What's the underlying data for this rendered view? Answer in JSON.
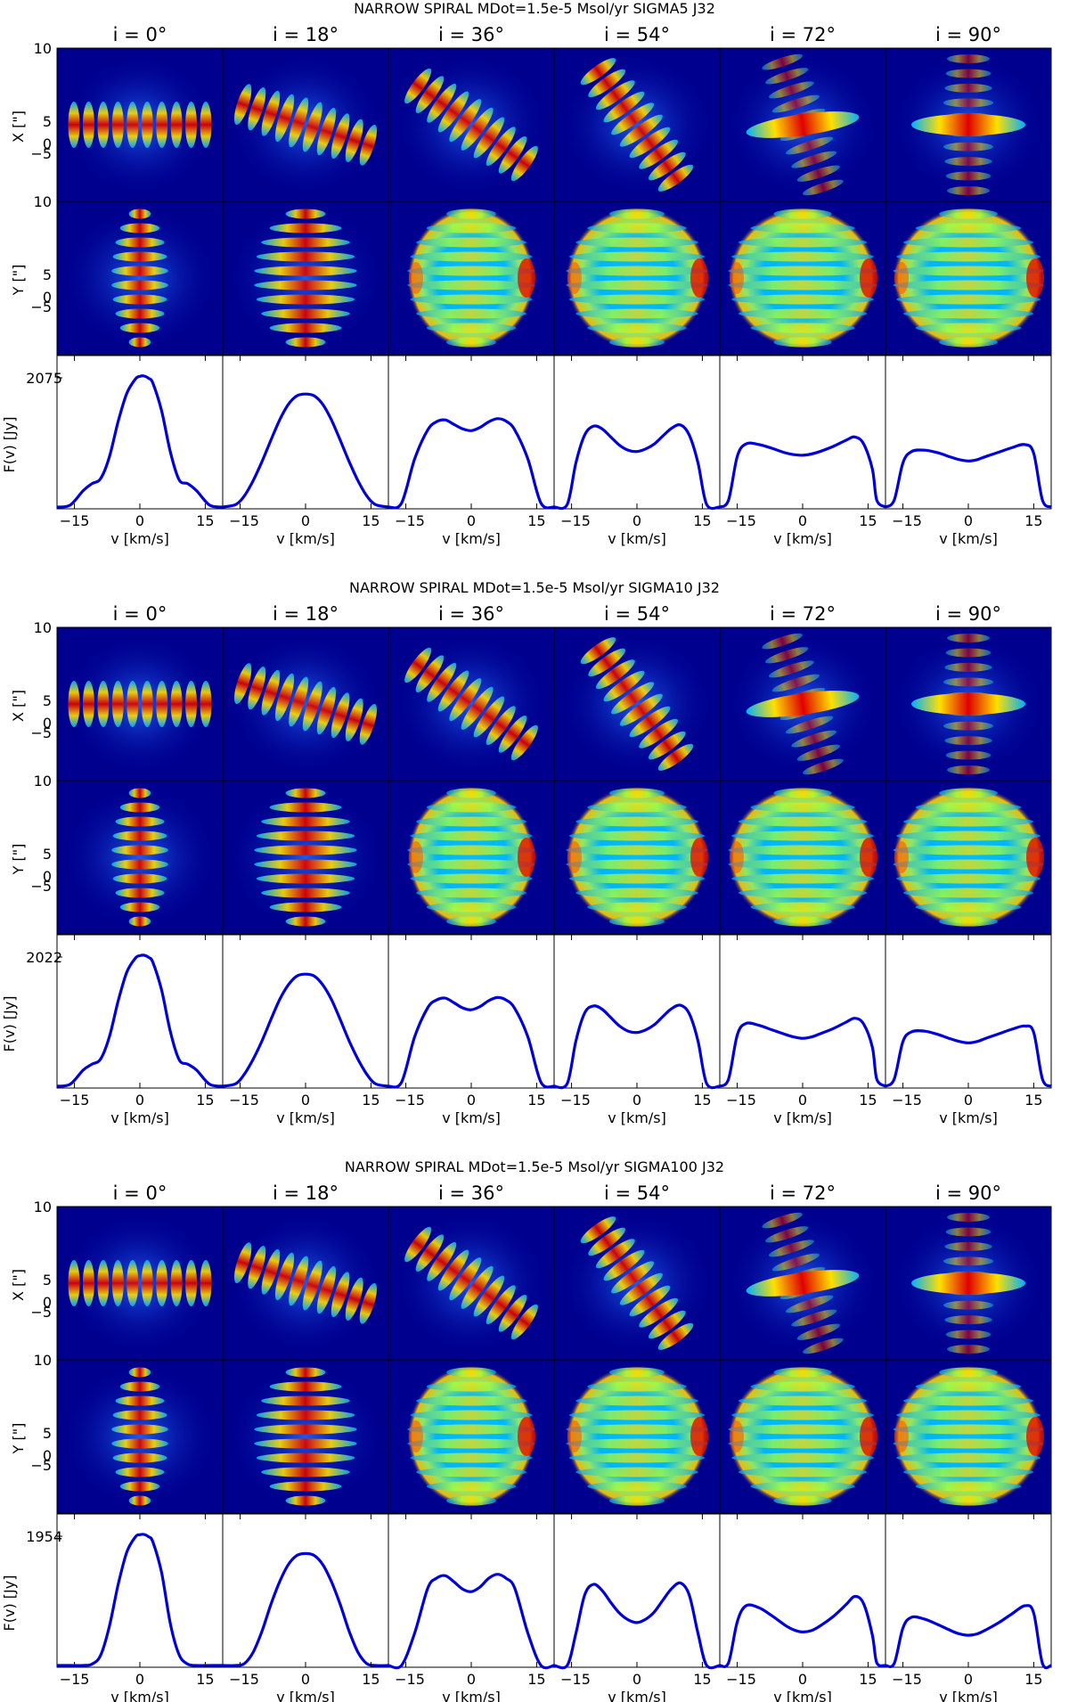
{
  "inclination_labels": [
    "i = 0°",
    "i = 18°",
    "i = 36°",
    "i = 54°",
    "i = 72°",
    "i = 90°"
  ],
  "axis_labels": {
    "x_map": "X [\"]",
    "y_map": "Y [\"]",
    "flux": "F(v) [Jy]",
    "velocity": "v [km/s]"
  },
  "map_tick_labels": [
    "10",
    "5",
    "0",
    "−5"
  ],
  "velocity_ticks_first": [
    "−15",
    "0",
    "15"
  ],
  "velocity_ticks_other": [
    "−15",
    "0",
    "15"
  ],
  "colors": {
    "line": "#0000d8",
    "map_background": "#00008f"
  },
  "chart_data": [
    {
      "type": "line",
      "title": "NARROW SPIRAL     MDot=1.5e-5 Msol/yr     SIGMA5     J32",
      "xlabel": "v [km/s]",
      "ylabel": "F(v) [Jy]",
      "xlim": [
        -19,
        19
      ],
      "peak_flux_label": "2075",
      "peak_flux": 2075,
      "series": [
        {
          "name": "i = 0°",
          "x": [
            -19,
            -16,
            -13,
            -11,
            -9,
            -7,
            -5,
            -3,
            -1,
            0,
            1,
            2,
            3,
            5,
            7,
            9,
            11,
            13,
            16,
            19
          ],
          "y": [
            0,
            30,
            260,
            370,
            450,
            790,
            1350,
            1800,
            2030,
            2070,
            2075,
            2040,
            1960,
            1520,
            870,
            430,
            370,
            260,
            30,
            0
          ]
        },
        {
          "name": "i = 18°",
          "x": [
            -19,
            -16,
            -14,
            -12,
            -10,
            -8,
            -6,
            -4,
            -2,
            0,
            2,
            4,
            6,
            8,
            10,
            12,
            14,
            16,
            19
          ],
          "y": [
            0,
            40,
            180,
            420,
            720,
            1050,
            1370,
            1620,
            1760,
            1790,
            1760,
            1620,
            1370,
            1050,
            720,
            420,
            180,
            40,
            0
          ]
        },
        {
          "name": "i = 36°",
          "x": [
            -19,
            -16,
            -13,
            -10,
            -8,
            -6,
            -4,
            -2,
            0,
            2,
            4,
            6,
            8,
            10,
            13,
            16,
            19
          ],
          "y": [
            0,
            60,
            760,
            1220,
            1350,
            1380,
            1310,
            1240,
            1210,
            1260,
            1350,
            1400,
            1360,
            1220,
            760,
            60,
            0
          ]
        },
        {
          "name": "i = 54°",
          "x": [
            -19,
            -16,
            -14,
            -12,
            -10,
            -8,
            -6,
            -4,
            -2,
            0,
            2,
            4,
            6,
            8,
            10,
            12,
            14,
            16,
            19
          ],
          "y": [
            0,
            40,
            700,
            1140,
            1280,
            1240,
            1110,
            980,
            900,
            880,
            920,
            1000,
            1130,
            1250,
            1300,
            1140,
            700,
            40,
            0
          ]
        },
        {
          "name": "i = 72°",
          "x": [
            -19,
            -17,
            -15,
            -13,
            -10,
            -7,
            -4,
            -2,
            0,
            2,
            4,
            7,
            10,
            12,
            14,
            16,
            17,
            19
          ],
          "y": [
            0,
            110,
            800,
            1000,
            990,
            930,
            860,
            830,
            820,
            840,
            880,
            960,
            1060,
            1110,
            1000,
            600,
            110,
            0
          ]
        },
        {
          "name": "i = 90°",
          "x": [
            -19,
            -17,
            -15,
            -13,
            -10,
            -7,
            -4,
            -2,
            0,
            2,
            4,
            7,
            10,
            13,
            15,
            17,
            19
          ],
          "y": [
            0,
            110,
            700,
            880,
            900,
            860,
            790,
            750,
            730,
            750,
            800,
            870,
            940,
            990,
            850,
            110,
            0
          ]
        }
      ]
    },
    {
      "type": "line",
      "title": "NARROW SPIRAL     MDot=1.5e-5 Msol/yr     SIGMA10     J32",
      "xlabel": "v [km/s]",
      "ylabel": "F(v) [Jy]",
      "xlim": [
        -19,
        19
      ],
      "peak_flux_label": "2022",
      "peak_flux": 2022,
      "series": [
        {
          "name": "i = 0°",
          "x": [
            -19,
            -16,
            -13,
            -11,
            -9,
            -7,
            -5,
            -3,
            -1,
            0,
            1,
            2,
            3,
            5,
            7,
            9,
            11,
            13,
            16,
            19
          ],
          "y": [
            0,
            30,
            250,
            340,
            420,
            760,
            1310,
            1760,
            1980,
            2015,
            2022,
            1990,
            1910,
            1480,
            840,
            410,
            340,
            250,
            30,
            0
          ]
        },
        {
          "name": "i = 18°",
          "x": [
            -19,
            -16,
            -14,
            -12,
            -10,
            -8,
            -6,
            -4,
            -2,
            0,
            2,
            4,
            6,
            8,
            10,
            12,
            14,
            16,
            19
          ],
          "y": [
            0,
            40,
            190,
            420,
            700,
            1020,
            1330,
            1560,
            1700,
            1730,
            1700,
            1560,
            1330,
            1020,
            700,
            420,
            190,
            40,
            0
          ]
        },
        {
          "name": "i = 36°",
          "x": [
            -19,
            -16,
            -13,
            -10,
            -8,
            -6,
            -4,
            -2,
            0,
            2,
            4,
            6,
            8,
            10,
            13,
            16,
            19
          ],
          "y": [
            0,
            60,
            760,
            1210,
            1330,
            1360,
            1290,
            1210,
            1180,
            1230,
            1320,
            1370,
            1330,
            1200,
            760,
            60,
            0
          ]
        },
        {
          "name": "i = 54°",
          "x": [
            -19,
            -16,
            -14,
            -12,
            -10,
            -8,
            -6,
            -4,
            -2,
            0,
            2,
            4,
            6,
            8,
            10,
            12,
            14,
            16,
            19
          ],
          "y": [
            0,
            40,
            700,
            1130,
            1240,
            1190,
            1060,
            930,
            850,
            830,
            870,
            950,
            1080,
            1200,
            1250,
            1120,
            700,
            40,
            0
          ]
        },
        {
          "name": "i = 72°",
          "x": [
            -19,
            -17,
            -15,
            -13,
            -10,
            -7,
            -4,
            -2,
            0,
            2,
            4,
            7,
            10,
            12,
            14,
            16,
            17,
            19
          ],
          "y": [
            0,
            110,
            790,
            970,
            940,
            870,
            800,
            760,
            740,
            760,
            810,
            890,
            990,
            1050,
            960,
            600,
            110,
            0
          ]
        },
        {
          "name": "i = 90°",
          "x": [
            -19,
            -17,
            -15,
            -13,
            -10,
            -7,
            -4,
            -2,
            0,
            2,
            4,
            7,
            10,
            13,
            15,
            17,
            19
          ],
          "y": [
            0,
            110,
            690,
            840,
            850,
            800,
            730,
            690,
            670,
            690,
            740,
            810,
            880,
            930,
            830,
            110,
            0
          ]
        }
      ]
    },
    {
      "type": "line",
      "title": "NARROW SPIRAL     MDot=1.5e-5 Msol/yr     SIGMA100     J32",
      "xlabel": "v [km/s]",
      "ylabel": "F(v) [Jy]",
      "xlim": [
        -19,
        19
      ],
      "peak_flux_label": "1954",
      "peak_flux": 1954,
      "series": [
        {
          "name": "i = 0°",
          "x": [
            -19,
            -16,
            -13,
            -11,
            -9,
            -7,
            -5,
            -3,
            -1,
            0,
            1,
            2,
            3,
            5,
            7,
            9,
            11,
            13,
            16,
            19
          ],
          "y": [
            0,
            0,
            0,
            20,
            150,
            580,
            1200,
            1690,
            1920,
            1950,
            1954,
            1920,
            1840,
            1380,
            620,
            160,
            20,
            0,
            0,
            0
          ]
        },
        {
          "name": "i = 18°",
          "x": [
            -19,
            -16,
            -14,
            -12,
            -10,
            -8,
            -6,
            -4,
            -2,
            0,
            2,
            4,
            6,
            8,
            10,
            12,
            14,
            16,
            19
          ],
          "y": [
            0,
            0,
            30,
            200,
            510,
            900,
            1240,
            1500,
            1640,
            1670,
            1640,
            1500,
            1240,
            900,
            510,
            200,
            30,
            0,
            0
          ]
        },
        {
          "name": "i = 36°",
          "x": [
            -19,
            -16,
            -13,
            -10,
            -8,
            -6,
            -4,
            -2,
            0,
            2,
            4,
            6,
            8,
            10,
            13,
            16,
            19
          ],
          "y": [
            0,
            0,
            480,
            1150,
            1300,
            1340,
            1250,
            1140,
            1100,
            1170,
            1300,
            1360,
            1300,
            1150,
            480,
            0,
            0
          ]
        },
        {
          "name": "i = 54°",
          "x": [
            -19,
            -16,
            -14,
            -12,
            -10,
            -8,
            -6,
            -4,
            -2,
            0,
            2,
            4,
            6,
            8,
            10,
            12,
            14,
            16,
            19
          ],
          "y": [
            0,
            0,
            480,
            1050,
            1210,
            1120,
            940,
            780,
            680,
            640,
            690,
            800,
            980,
            1150,
            1230,
            1050,
            480,
            0,
            0
          ]
        },
        {
          "name": "i = 72°",
          "x": [
            -19,
            -17,
            -15,
            -13,
            -10,
            -7,
            -4,
            -2,
            0,
            2,
            4,
            7,
            10,
            12,
            14,
            16,
            17,
            19
          ],
          "y": [
            0,
            40,
            650,
            890,
            860,
            740,
            600,
            530,
            500,
            520,
            590,
            730,
            910,
            1030,
            920,
            450,
            40,
            0
          ]
        },
        {
          "name": "i = 90°",
          "x": [
            -19,
            -17,
            -15,
            -13,
            -10,
            -7,
            -4,
            -2,
            0,
            2,
            4,
            7,
            10,
            13,
            15,
            17,
            19
          ],
          "y": [
            0,
            30,
            560,
            720,
            690,
            610,
            520,
            470,
            450,
            470,
            530,
            640,
            770,
            890,
            780,
            30,
            0
          ]
        }
      ]
    }
  ]
}
